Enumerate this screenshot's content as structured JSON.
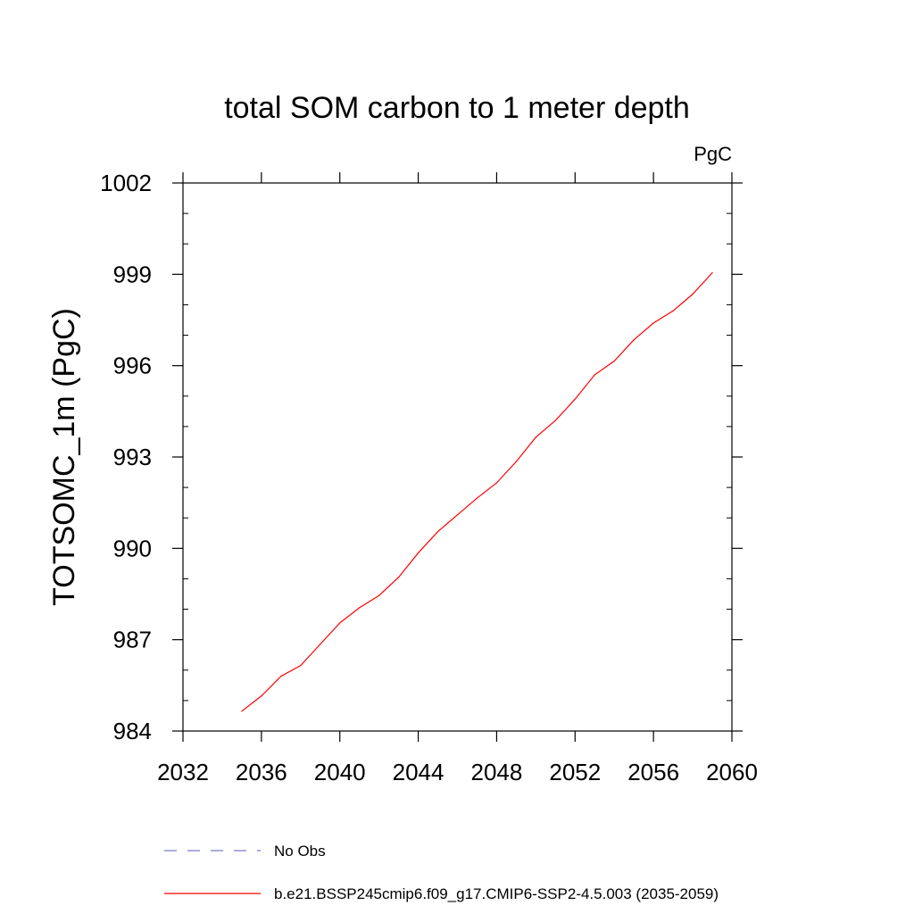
{
  "chart_data": {
    "type": "line",
    "title": "total SOM carbon to 1 meter depth",
    "units_label": "PgC",
    "ylabel": "TOTSOMC_1m  (PgC)",
    "xlabel": "",
    "xlim": [
      2032,
      2060
    ],
    "ylim": [
      984,
      1002
    ],
    "x_ticks": [
      2032,
      2036,
      2040,
      2044,
      2048,
      2052,
      2056,
      2060
    ],
    "y_ticks": [
      984,
      987,
      990,
      993,
      996,
      999,
      1002
    ],
    "grid": false,
    "legend_placement": "bottom",
    "series": [
      {
        "name": "b.e21.BSSP245cmip6.f09_g17.CMIP6-SSP2-4.5.003 (2035-2059)",
        "color": "#ff0000",
        "dash": "solid",
        "x": [
          2035,
          2036,
          2037,
          2038,
          2039,
          2040,
          2041,
          2042,
          2043,
          2044,
          2045,
          2046,
          2047,
          2048,
          2049,
          2050,
          2051,
          2052,
          2053,
          2054,
          2055,
          2056,
          2057,
          2058,
          2059
        ],
        "y": [
          984.65,
          985.15,
          985.8,
          986.15,
          986.85,
          987.55,
          988.05,
          988.45,
          989.05,
          989.85,
          990.55,
          991.1,
          991.65,
          992.15,
          992.85,
          993.65,
          994.2,
          994.9,
          995.7,
          996.15,
          996.85,
          997.4,
          997.8,
          998.35,
          999.05
        ]
      }
    ],
    "legend": [
      {
        "label": "No Obs",
        "color": "#7b7bc8",
        "dash": "dashed"
      },
      {
        "label": "b.e21.BSSP245cmip6.f09_g17.CMIP6-SSP2-4.5.003 (2035-2059)",
        "color": "#ff0000",
        "dash": "solid"
      }
    ]
  }
}
